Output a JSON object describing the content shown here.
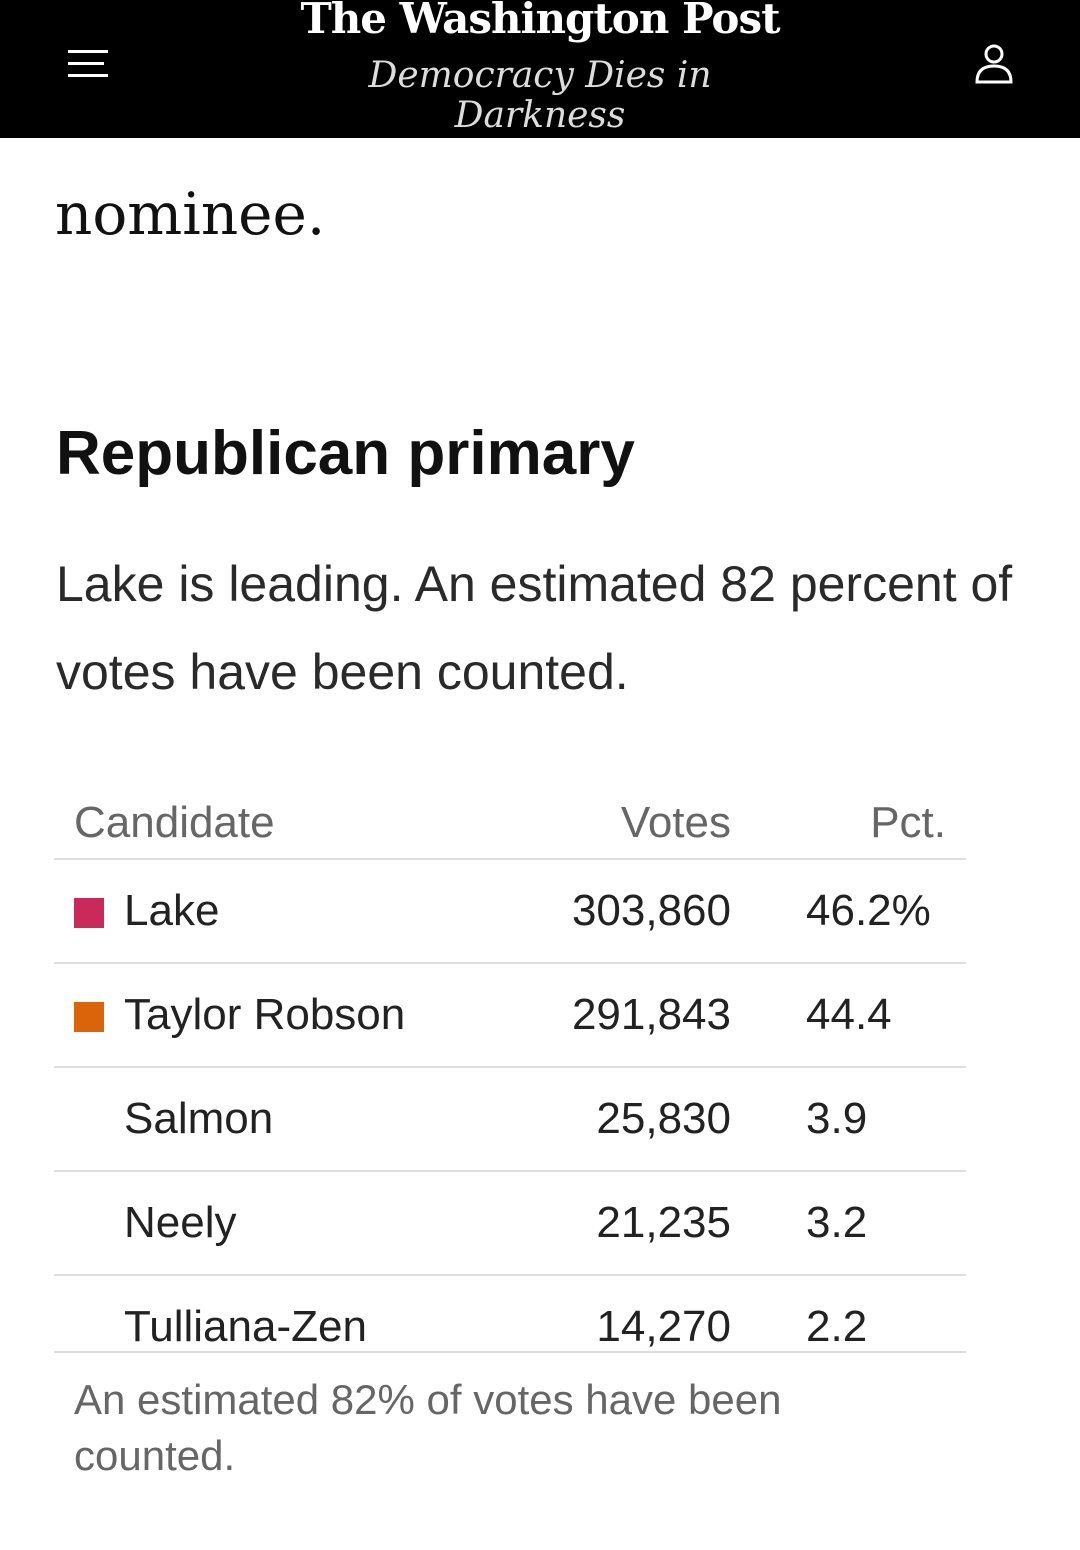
{
  "header": {
    "logo": "The Washington Post",
    "tagline": "Democracy Dies in Darkness",
    "menu_icon": "hamburger-icon",
    "user_icon": "user-icon"
  },
  "article": {
    "prev_text": "nominee."
  },
  "section": {
    "title": "Republican primary",
    "summary": "Lake is leading. An estimated 82 percent of votes have been counted."
  },
  "table": {
    "headers": {
      "candidate": "Candidate",
      "votes": "Votes",
      "pct": "Pct."
    },
    "rows": [
      {
        "name": "Lake",
        "votes": "303,860",
        "pct": "46.2%",
        "color": "#c92a5a"
      },
      {
        "name": "Taylor Robson",
        "votes": "291,843",
        "pct": "44.4",
        "color": "#db6309"
      },
      {
        "name": "Salmon",
        "votes": "25,830",
        "pct": "3.9"
      },
      {
        "name": "Neely",
        "votes": "21,235",
        "pct": "3.2"
      },
      {
        "name": "Tulliana-Zen",
        "votes": "14,270",
        "pct": "2.2"
      }
    ],
    "footnote": "An estimated 82% of votes have been counted."
  }
}
